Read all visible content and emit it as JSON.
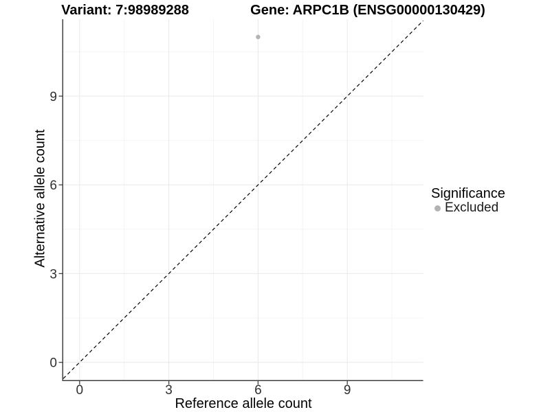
{
  "chart_data": {
    "type": "scatter",
    "title_left": "Variant: 7:98989288",
    "title_right": "Gene: ARPC1B (ENSG00000130429)",
    "xlabel": "Reference allele count",
    "ylabel": "Alternative allele count",
    "xlim": [
      -0.55,
      11.55
    ],
    "ylim": [
      -0.6,
      11.6
    ],
    "xticks": [
      0,
      3,
      6,
      9
    ],
    "yticks": [
      0,
      3,
      6,
      9
    ],
    "x_minor_gridlines": [
      1.5,
      4.5,
      7.5,
      10.5
    ],
    "y_minor_gridlines": [
      1.5,
      4.5,
      7.5,
      10.5
    ],
    "grid": true,
    "legend_position": "right",
    "points": [
      {
        "x": 6,
        "y": 11,
        "series": "Excluded"
      }
    ],
    "series": [
      {
        "name": "Excluded",
        "color": "#b3b3b3"
      }
    ],
    "identity_line": {
      "style": "dashed",
      "color": "#000000",
      "slope": 1,
      "intercept": 0
    }
  },
  "legend": {
    "title": "Significance",
    "items": [
      {
        "label": "Excluded",
        "color": "#b3b3b3",
        "marker": "circle"
      }
    ]
  },
  "colors": {
    "background": "#ffffff",
    "axis_line": "#404040",
    "tick_label": "#303030",
    "grid_major": "#e8e8e8",
    "grid_minor": "#f4f4f4",
    "title_text": "#000000"
  }
}
